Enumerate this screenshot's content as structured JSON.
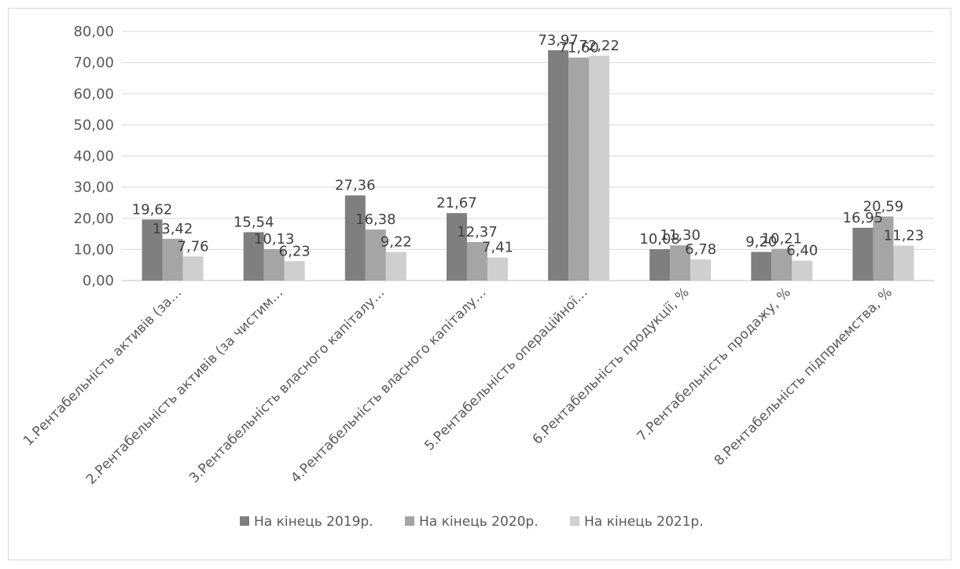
{
  "chart_data": {
    "type": "bar",
    "title": "",
    "xlabel": "",
    "ylabel": "",
    "ylim": [
      0,
      80
    ],
    "ytick_step": 10,
    "ytick_labels": [
      "0,00",
      "10,00",
      "20,00",
      "30,00",
      "40,00",
      "50,00",
      "60,00",
      "70,00",
      "80,00"
    ],
    "grid": true,
    "legend_position": "bottom",
    "categories": [
      "1.Рентабельність активів (за…",
      "2.Рентабельність активів (за чистим…",
      "3.Рентабельність власного капіталу…",
      "4.Рентабельність власного капіталу…",
      "5.Рентабельність операційної…",
      "6.Рентабельність продукції, %",
      "7.Рентабельність продажу, %",
      "8.Рентабельність підприемства, %"
    ],
    "series": [
      {
        "name": "На кінець 2019р.",
        "color": "#7f7f7f",
        "values": [
          19.62,
          15.54,
          27.36,
          21.67,
          73.97,
          10.08,
          9.2,
          16.95
        ],
        "labels": [
          "19,62",
          "15,54",
          "27,36",
          "21,67",
          "73,97",
          "10,08",
          "9,20",
          "16,95"
        ]
      },
      {
        "name": "На кінець 2020р.",
        "color": "#a5a5a5",
        "values": [
          13.42,
          10.13,
          16.38,
          12.37,
          71.6,
          11.3,
          10.21,
          20.59
        ],
        "labels": [
          "13,42",
          "10,13",
          "16,38",
          "12,37",
          "71,60",
          "11,30",
          "10,21",
          "20,59"
        ]
      },
      {
        "name": "На кінець 2021р.",
        "color": "#cfcfcf",
        "values": [
          7.76,
          6.23,
          9.22,
          7.41,
          72.22,
          6.78,
          6.4,
          11.23
        ],
        "labels": [
          "7,76",
          "6,23",
          "9,22",
          "7,41",
          "72,22",
          "6,78",
          "6,40",
          "11,23"
        ]
      }
    ]
  }
}
